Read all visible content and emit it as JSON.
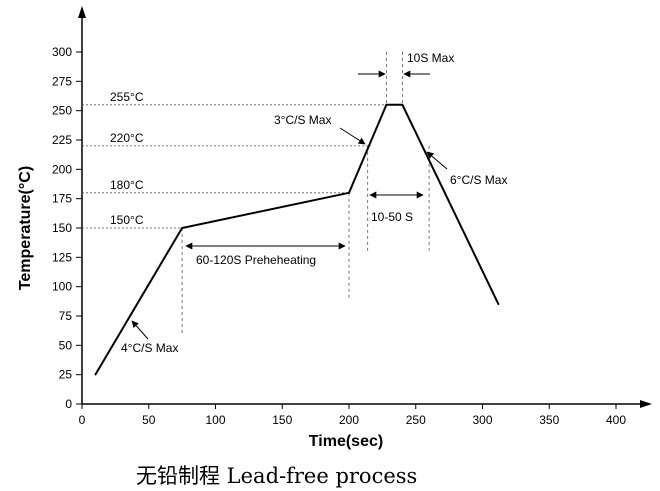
{
  "chart_data": {
    "type": "line",
    "xlabel": "Time(sec)",
    "ylabel": "Temperature(°C)",
    "xlim": [
      0,
      400
    ],
    "ylim": [
      0,
      300
    ],
    "xticks": [
      0,
      50,
      100,
      150,
      200,
      250,
      300,
      350,
      400
    ],
    "yticks": [
      0,
      25,
      50,
      75,
      100,
      125,
      150,
      175,
      200,
      225,
      250,
      275,
      300
    ],
    "grid": false,
    "series": [
      {
        "x": [
          10,
          75,
          200,
          228,
          240,
          312
        ],
        "y": [
          25,
          150,
          180,
          255,
          255,
          85
        ]
      }
    ],
    "reference_lines": [
      {
        "label": "255°C",
        "y": 255
      },
      {
        "label": "220°C",
        "y": 220
      },
      {
        "label": "180°C",
        "y": 180
      },
      {
        "label": "150°C",
        "y": 150
      }
    ],
    "annotations": {
      "preheat": "60-120S Preheheating",
      "above_220": "10-50 S",
      "peak": "10S Max",
      "ramp_up_1": "4°C/S Max",
      "ramp_up_2": "3°C/S Max",
      "ramp_down": "6°C/S Max"
    }
  },
  "caption": "无铅制程 Lead-free process"
}
